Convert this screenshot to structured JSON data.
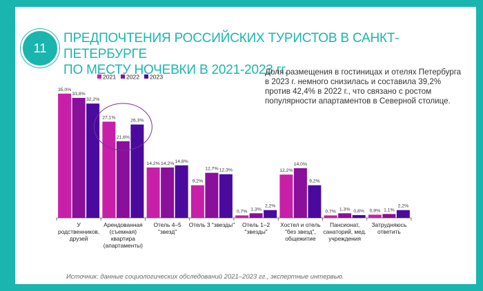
{
  "slide": {
    "number": "11",
    "title_line1": "ПРЕДПОЧТЕНИЯ РОССИЙСКИХ ТУРИСТОВ В САНКТ-ПЕТЕРБУРГЕ",
    "title_line2": "ПО МЕСТУ НОЧЕВКИ В 2021-2023 гг.",
    "note": "Доля размещения в гостиницах и отелях Петербурга в 2023 г. немного снизилась и составила 39,2% против 42,4% в 2022 г., что связано с ростом популярности апартаментов в Северной столице.",
    "source": "Источник: данные социологических обследований 2021–2023 гг., экспертные интервью.",
    "colors": {
      "frame": "#1bb5b0",
      "highlight": "#7a2e9e"
    }
  },
  "chart_data": {
    "type": "bar",
    "title": "",
    "xlabel": "",
    "ylabel": "",
    "ylim": [
      0,
      40
    ],
    "grid": false,
    "legend": "top-left",
    "categories": [
      [
        "У",
        "родственников,",
        "друзей"
      ],
      [
        "Арендованная",
        "(съемная)",
        "квартира",
        "(апартаменты)"
      ],
      [
        "Отель 4–5",
        "\"звезд\""
      ],
      [
        "Отель 3 \"звезды\""
      ],
      [
        "Отель 1–2",
        "\"звезды\""
      ],
      [
        "Хостел и отель",
        "\"без звезд\",",
        "общежитие"
      ],
      [
        "Пансионат,",
        "санаторий, мед.",
        "учреждения"
      ],
      [
        "Затрудняюсь",
        "ответить"
      ]
    ],
    "series": [
      {
        "name": "2021",
        "color": "#c81fa8",
        "values": [
          35.0,
          27.1,
          14.2,
          9.2,
          0.7,
          12.2,
          0.7,
          0.9
        ],
        "labels": [
          "35,0%",
          "27,1%",
          "14,2%",
          "9,2%",
          "0,7%",
          "12,2%",
          "0,7%",
          "0,9%"
        ]
      },
      {
        "name": "2022",
        "color": "#8a0f9a",
        "values": [
          33.8,
          21.6,
          14.2,
          12.7,
          1.3,
          14.0,
          1.3,
          1.1
        ],
        "labels": [
          "33,8%",
          "21,6%",
          "14,2%",
          "12,7%",
          "1,3%",
          "14,0%",
          "1,3%",
          "1,1%"
        ]
      },
      {
        "name": "2023",
        "color": "#4b0a9e",
        "values": [
          32.2,
          26.3,
          14.8,
          12.3,
          2.2,
          9.2,
          0.8,
          2.2
        ],
        "labels": [
          "32,2%",
          "26,3%",
          "14,8%",
          "12,3%",
          "2,2%",
          "9,2%",
          "0,8%",
          "2,2%"
        ]
      }
    ],
    "highlighted_category": 1
  }
}
